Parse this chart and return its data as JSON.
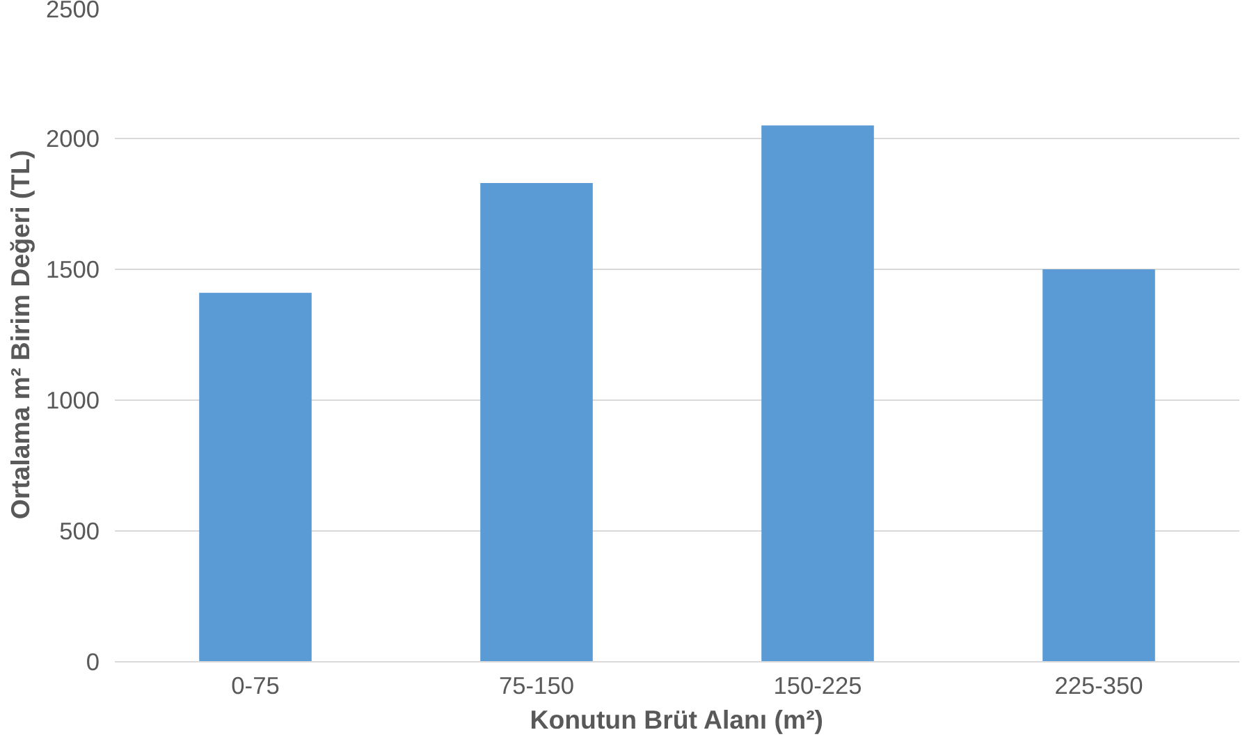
{
  "chart_data": {
    "type": "bar",
    "xlabel": "Konutun Brüt Alanı (m²)",
    "ylabel": "Ortalama m² Birim Değeri (TL)",
    "categories": [
      "0-75",
      "75-150",
      "150-225",
      "225-350"
    ],
    "values": [
      1410,
      1830,
      2050,
      1500
    ],
    "color": "#5b9bd5",
    "ylim": [
      0,
      2500
    ],
    "yticks": [
      0,
      500,
      1000,
      1500,
      2000,
      2500
    ],
    "grid": "y"
  }
}
